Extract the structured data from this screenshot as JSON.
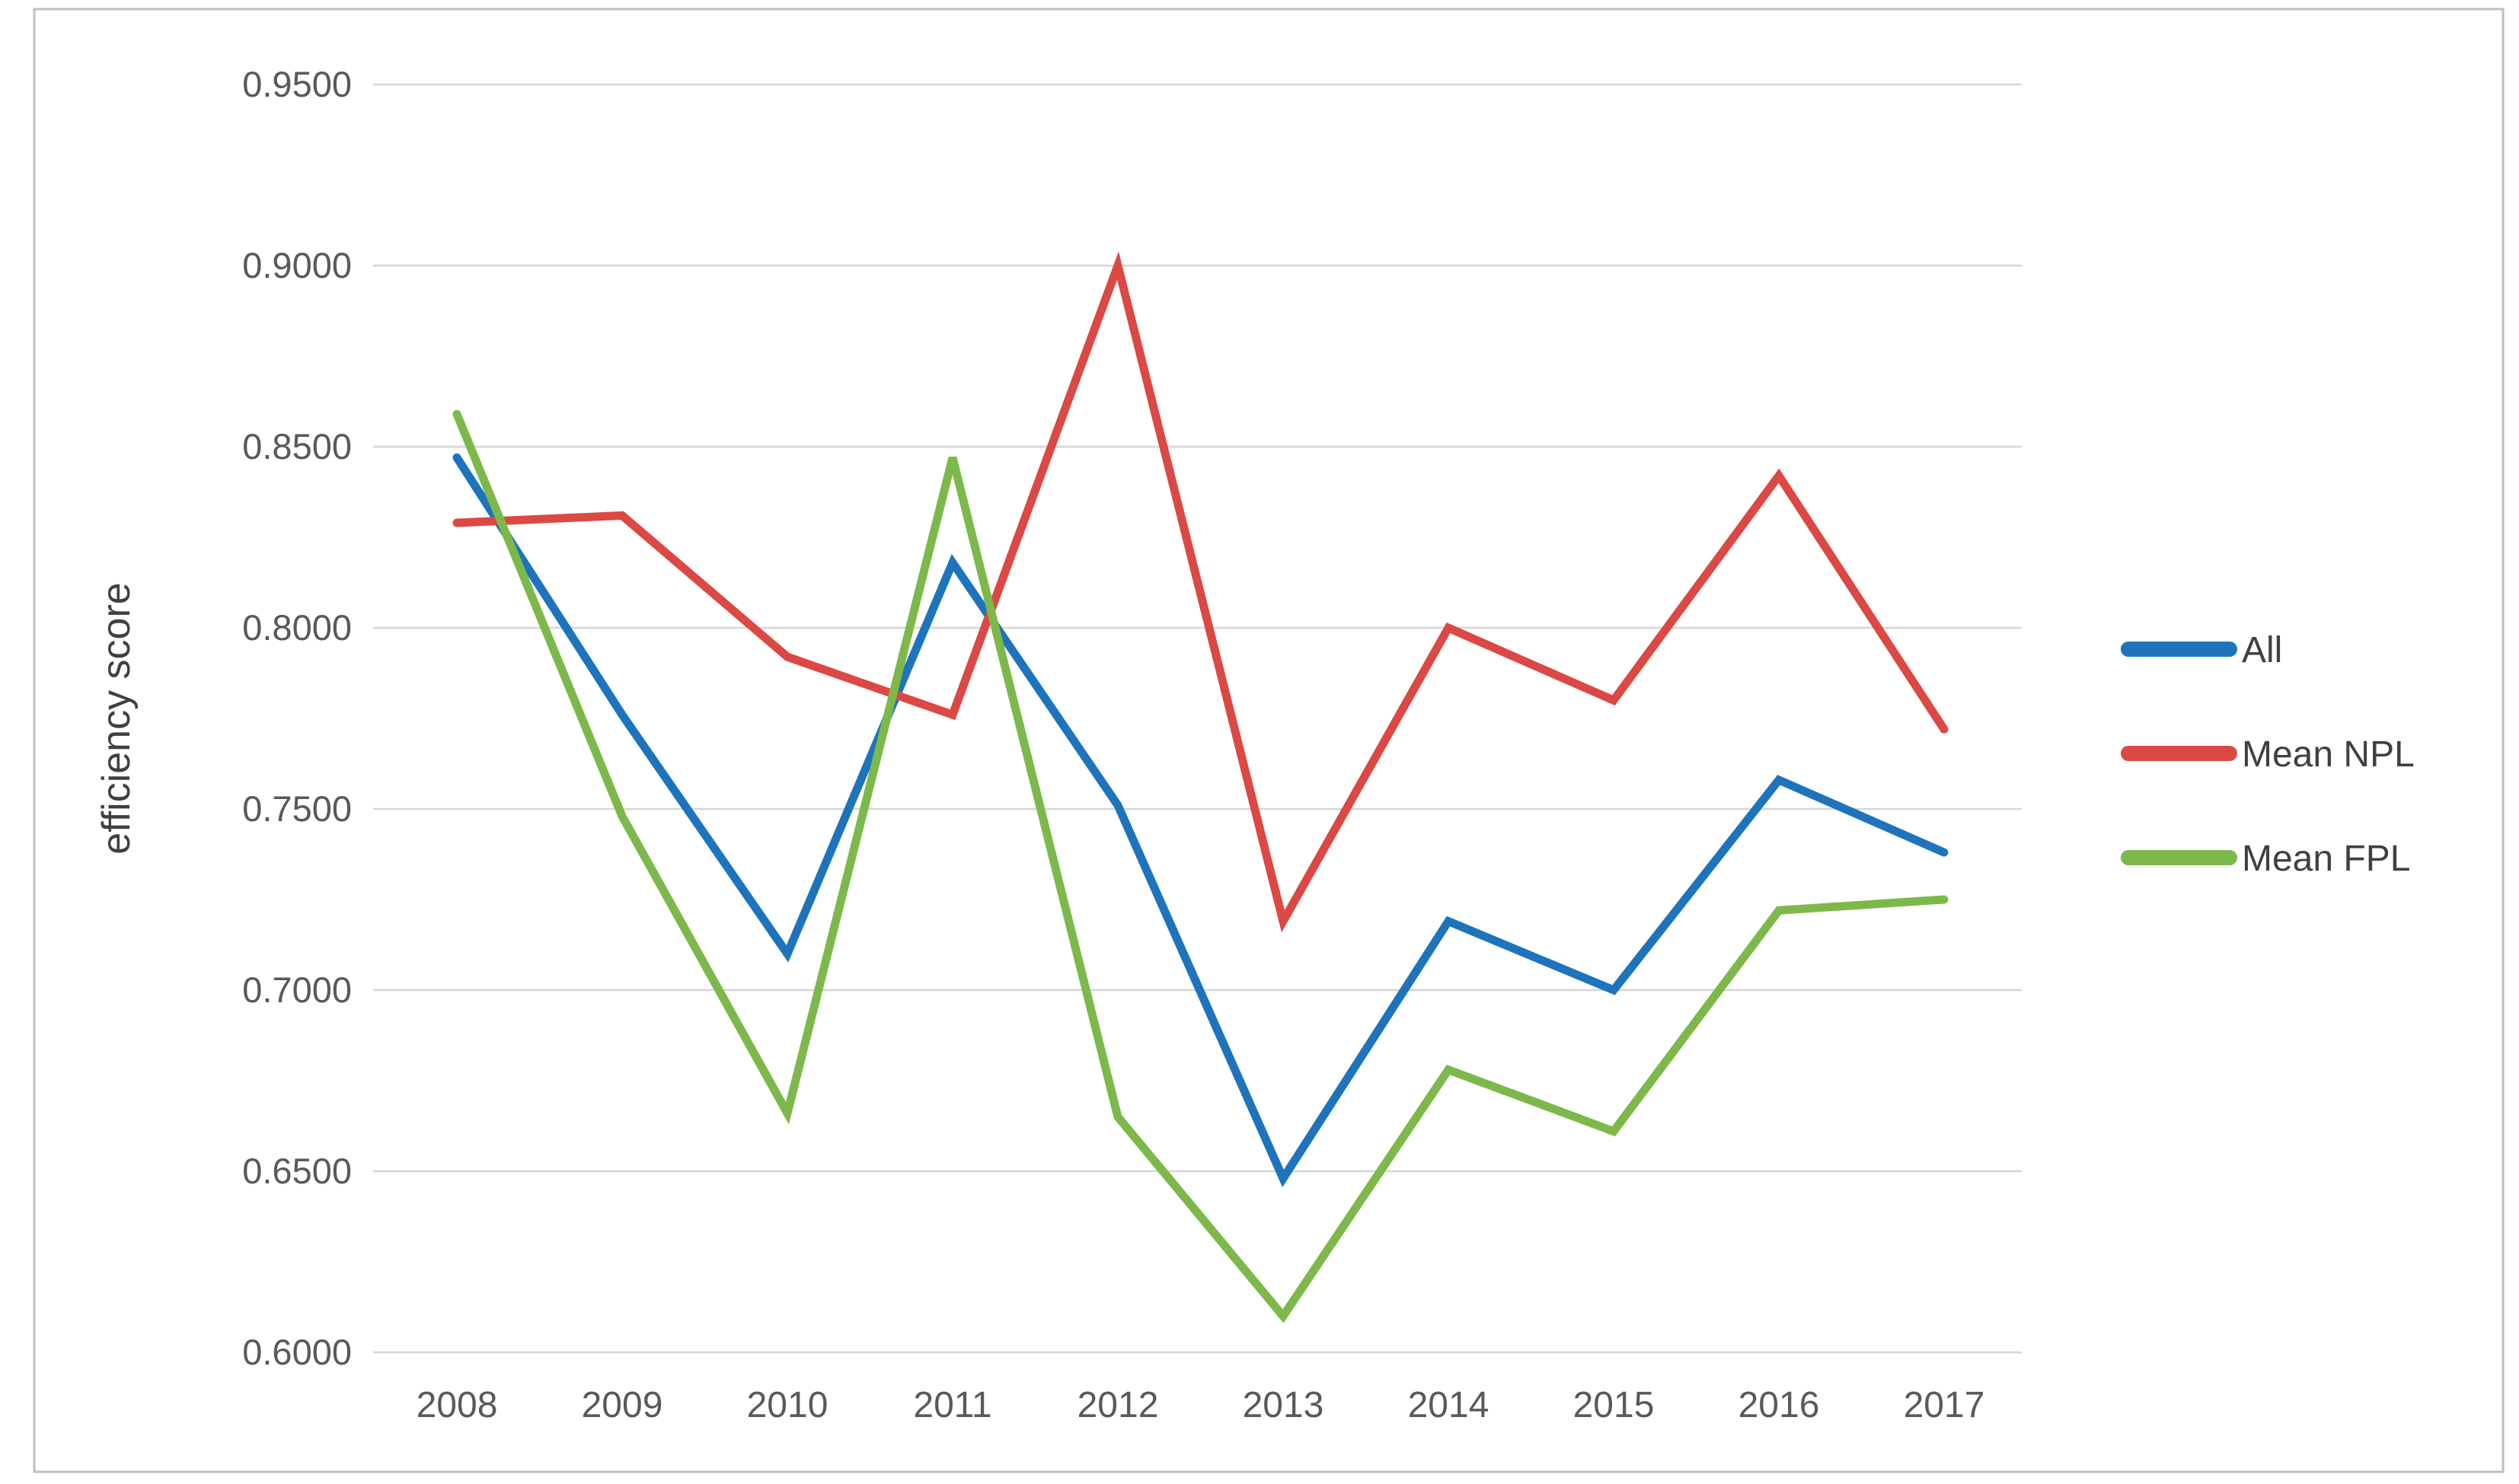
{
  "figure": {
    "title": "",
    "ylabel": "efficiency score",
    "background_color": "#ffffff",
    "border_color": "#bfbfbf"
  },
  "chart_data": {
    "type": "line",
    "x": [
      2008,
      2009,
      2010,
      2011,
      2012,
      2013,
      2014,
      2015,
      2016,
      2017
    ],
    "xlabel": "",
    "ylabel": "efficiency score",
    "ylim": [
      0.6,
      0.95
    ],
    "ytick_step": 0.05,
    "ytick_labels": [
      "0.9500",
      "0.9000",
      "0.8500",
      "0.8000",
      "0.7500",
      "0.7000",
      "0.6500",
      "0.6000"
    ],
    "grid": true,
    "gridline_color": "#d6d6d6",
    "tick_label_color": "#595959",
    "axis_title_color": "#404040",
    "legend_position": "right",
    "legend_text_color": "#404040",
    "series": [
      {
        "name": "All",
        "color": "#1d74bc",
        "values": [
          0.847,
          0.776,
          0.71,
          0.818,
          0.751,
          0.648,
          0.719,
          0.7,
          0.758,
          0.738
        ]
      },
      {
        "name": "Mean NPL",
        "color": "#dc4843",
        "values": [
          0.829,
          0.831,
          0.792,
          0.776,
          0.9,
          0.719,
          0.8,
          0.78,
          0.842,
          0.772
        ]
      },
      {
        "name": "Mean FPL",
        "color": "#7cb94a",
        "values": [
          0.859,
          0.748,
          0.666,
          0.847,
          0.665,
          0.61,
          0.678,
          0.661,
          0.722,
          0.725
        ]
      }
    ]
  }
}
